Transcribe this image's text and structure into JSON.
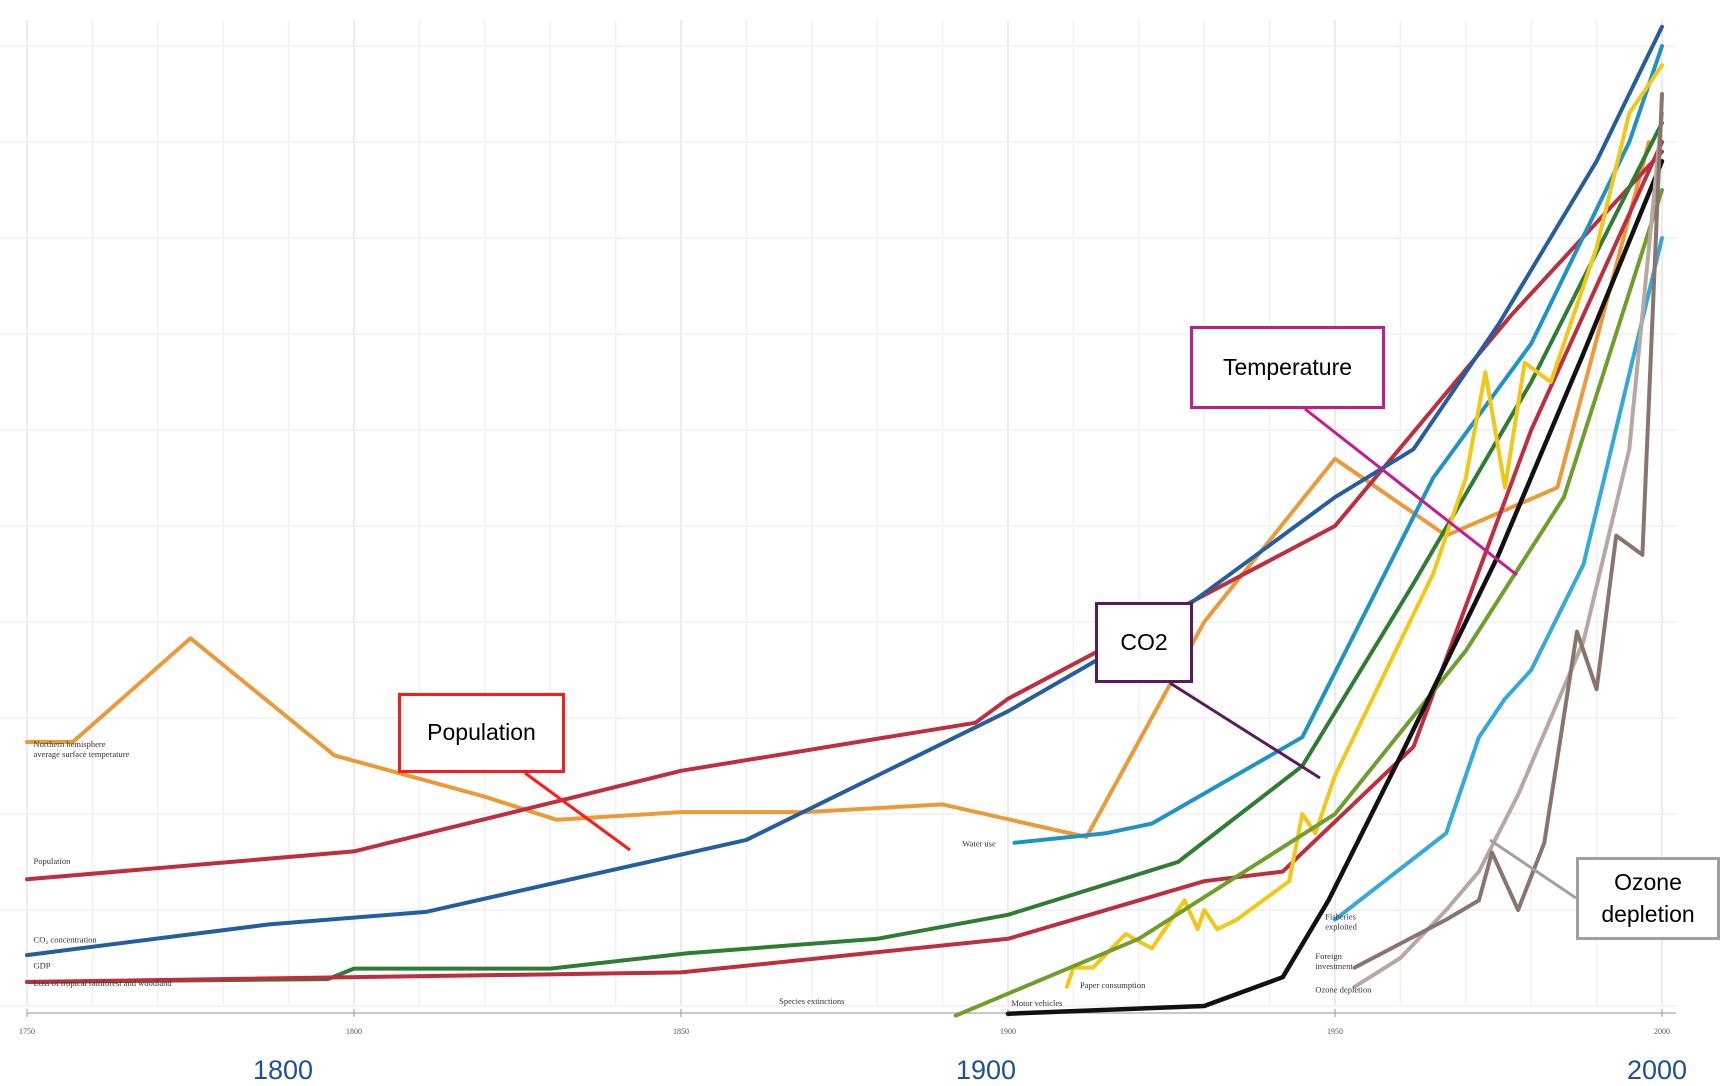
{
  "chart_data": {
    "type": "line",
    "x_range": [
      1750,
      2002
    ],
    "y_range": [
      0,
      100
    ],
    "x_ticks": [
      "1750",
      "1800",
      "1850",
      "1900",
      "1950",
      "2000"
    ],
    "big_x_labels": [
      "1800",
      "1900",
      "2000"
    ],
    "grid": true,
    "series": [
      {
        "name": "Northern hemisphere average surface temperature",
        "color": "#ec9a38",
        "points": [
          [
            1750,
            27.5
          ],
          [
            1757,
            27.5
          ],
          [
            1775,
            38.3
          ],
          [
            1797,
            26.1
          ],
          [
            1820,
            21.8
          ],
          [
            1831,
            19.4
          ],
          [
            1850,
            20.2
          ],
          [
            1869,
            20.2
          ],
          [
            1890,
            21.0
          ],
          [
            1912,
            17.6
          ],
          [
            1930,
            40.0
          ],
          [
            1950,
            57.0
          ],
          [
            1967,
            49.0
          ],
          [
            1984,
            54.0
          ],
          [
            1998,
            90.0
          ]
        ]
      },
      {
        "name": "Population",
        "color": "#be2e3e",
        "points": [
          [
            1750,
            13.2
          ],
          [
            1800,
            16.1
          ],
          [
            1850,
            24.5
          ],
          [
            1895,
            29.5
          ],
          [
            1900,
            32.0
          ],
          [
            1950,
            50.0
          ],
          [
            1977,
            72.0
          ],
          [
            2000,
            89.0
          ]
        ]
      },
      {
        "name": "CO2 concentration",
        "color": "#235ea0",
        "points": [
          [
            1750,
            5.3
          ],
          [
            1787,
            8.5
          ],
          [
            1811,
            9.8
          ],
          [
            1860,
            17.3
          ],
          [
            1900,
            30.7
          ],
          [
            1925,
            40.5
          ],
          [
            1950,
            53.0
          ],
          [
            1962,
            58.0
          ],
          [
            1975,
            71.0
          ],
          [
            1990,
            88.0
          ],
          [
            2000,
            102.0
          ]
        ]
      },
      {
        "name": "GDP",
        "color": "#2e7d32",
        "points": [
          [
            1750,
            2.5
          ],
          [
            1796,
            2.8
          ],
          [
            1800,
            3.9
          ],
          [
            1830,
            3.9
          ],
          [
            1851,
            5.5
          ],
          [
            1880,
            7.0
          ],
          [
            1900,
            9.5
          ],
          [
            1926,
            15.0
          ],
          [
            1945,
            25.0
          ],
          [
            1962,
            44.0
          ],
          [
            1980,
            65.0
          ],
          [
            2000,
            92.0
          ]
        ]
      },
      {
        "name": "Loss of tropical rainforest and woodland",
        "color": "#be2e3e",
        "points": [
          [
            1750,
            2.5
          ],
          [
            1850,
            3.5
          ],
          [
            1900,
            7.0
          ],
          [
            1930,
            13.0
          ],
          [
            1942,
            14.0
          ],
          [
            1962,
            27.0
          ],
          [
            1980,
            60.0
          ],
          [
            2000,
            90.0
          ]
        ]
      },
      {
        "name": "Water use",
        "color": "#1f93c8",
        "points": [
          [
            1901,
            17.0
          ],
          [
            1915,
            18.0
          ],
          [
            1922,
            19.0
          ],
          [
            1945,
            28.0
          ],
          [
            1965,
            55.0
          ],
          [
            1980,
            69.0
          ],
          [
            1995,
            90.0
          ],
          [
            2000,
            100.0
          ]
        ]
      },
      {
        "name": "Paper consumption",
        "color": "#f2c716",
        "points": [
          [
            1909,
            2.0
          ],
          [
            1910,
            4.0
          ],
          [
            1913,
            4.0
          ],
          [
            1918,
            7.5
          ],
          [
            1922,
            6.0
          ],
          [
            1927,
            11.0
          ],
          [
            1929,
            8.0
          ],
          [
            1930,
            10.0
          ],
          [
            1932,
            8.0
          ],
          [
            1935,
            9.0
          ],
          [
            1943,
            13.0
          ],
          [
            1945,
            20.0
          ],
          [
            1947,
            18.0
          ],
          [
            1950,
            24.0
          ],
          [
            1965,
            45.0
          ],
          [
            1970,
            55.0
          ],
          [
            1973,
            66.0
          ],
          [
            1976,
            54.0
          ],
          [
            1979,
            67.0
          ],
          [
            1983,
            65.0
          ],
          [
            1990,
            79.0
          ],
          [
            1995,
            93.0
          ],
          [
            2000,
            98.0
          ]
        ]
      },
      {
        "name": "Species extinctions",
        "color": "#6e9f2a",
        "points": [
          [
            1892,
            -1.0
          ],
          [
            1920,
            7.0
          ],
          [
            1950,
            20.0
          ],
          [
            1970,
            37.0
          ],
          [
            1985,
            53.0
          ],
          [
            2000,
            85.0
          ]
        ]
      },
      {
        "name": "Motor vehicles",
        "color": "#111111",
        "points": [
          [
            1900,
            -0.8
          ],
          [
            1930,
            0.0
          ],
          [
            1942,
            3.0
          ],
          [
            1949,
            11.0
          ],
          [
            1960,
            26.0
          ],
          [
            1975,
            47.0
          ],
          [
            1988,
            68.0
          ],
          [
            2000,
            88.0
          ]
        ]
      },
      {
        "name": "Fisheries exploited",
        "color": "#34a9db",
        "points": [
          [
            1950,
            9.0
          ],
          [
            1967,
            18.0
          ],
          [
            1972,
            28.0
          ],
          [
            1976,
            32.0
          ],
          [
            1980,
            35.0
          ],
          [
            1988,
            46.0
          ],
          [
            2000,
            80.0
          ]
        ]
      },
      {
        "name": "Foreign investment",
        "color": "#b8a8a4",
        "points": [
          [
            1953,
            2.0
          ],
          [
            1960,
            5.0
          ],
          [
            1967,
            10.0
          ],
          [
            1972,
            14.0
          ],
          [
            1978,
            22.0
          ],
          [
            1988,
            38.0
          ],
          [
            1995,
            58.0
          ],
          [
            2000,
            93.0
          ]
        ]
      },
      {
        "name": "Ozone depletion",
        "color": "#8a756e",
        "points": [
          [
            1953,
            4.0
          ],
          [
            1967,
            9.0
          ],
          [
            1972,
            11.0
          ],
          [
            1974,
            16.0
          ],
          [
            1978,
            10.0
          ],
          [
            1982,
            17.0
          ],
          [
            1987,
            39.0
          ],
          [
            1990,
            33.0
          ],
          [
            1993,
            49.0
          ],
          [
            1997,
            47.0
          ],
          [
            2000,
            95.0
          ]
        ]
      }
    ],
    "inline_labels": [
      {
        "id": "temp",
        "lines": [
          "Northern hemisphere",
          "average surface temperature"
        ],
        "x": 1751,
        "y": 27.0
      },
      {
        "id": "pop",
        "lines": [
          "Population"
        ],
        "x": 1751,
        "y": 14.8
      },
      {
        "id": "co2",
        "lines": [
          "CO₂ concentration"
        ],
        "x": 1751,
        "y": 6.6
      },
      {
        "id": "gdp",
        "lines": [
          "GDP"
        ],
        "x": 1751,
        "y": 3.9
      },
      {
        "id": "forest",
        "lines": [
          "Loss of tropical rainforest and woodland"
        ],
        "x": 1751,
        "y": 2.1
      },
      {
        "id": "water",
        "lines": [
          "Water use"
        ],
        "x": 1893,
        "y": 16.6
      },
      {
        "id": "paper",
        "lines": [
          "Paper consumption"
        ],
        "x": 1911,
        "y": 1.9
      },
      {
        "id": "species",
        "lines": [
          "Species extinctions"
        ],
        "x": 1865,
        "y": 0.2
      },
      {
        "id": "vehicles",
        "lines": [
          "Motor vehicles"
        ],
        "x": 1900.5,
        "y": 0.0
      },
      {
        "id": "fisheries",
        "lines": [
          "Fisheries",
          "exploited"
        ],
        "x": 1948.5,
        "y": 9.0
      },
      {
        "id": "foreign",
        "lines": [
          "Foreign",
          "investment"
        ],
        "x": 1947,
        "y": 4.9
      },
      {
        "id": "ozone",
        "lines": [
          "Ozone depletion"
        ],
        "x": 1947,
        "y": 1.4
      }
    ]
  },
  "callouts": [
    {
      "id": "population",
      "text": "Population",
      "color": "#ff1a1a"
    },
    {
      "id": "co2",
      "text": "CO2",
      "color": "#5a1a5e"
    },
    {
      "id": "temperature",
      "text": "Temperature",
      "color": "#c8198f"
    },
    {
      "id": "ozone",
      "text": "Ozone depletion",
      "color": "#a0a0a0"
    }
  ]
}
